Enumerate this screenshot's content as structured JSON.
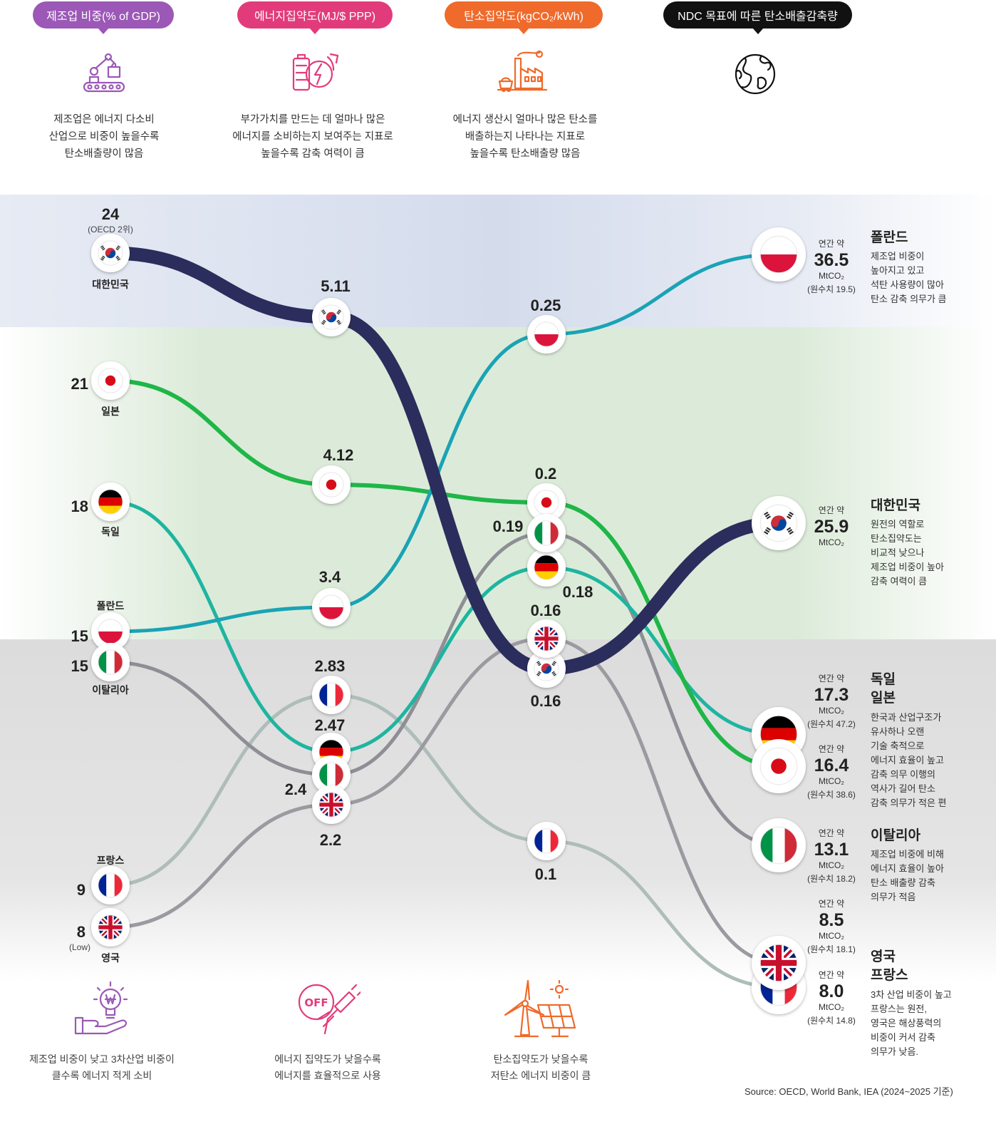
{
  "headers": [
    {
      "label": "제조업 비중(% of GDP)",
      "color": "#9b58b6",
      "icon": "robot-arm-icon",
      "desc": [
        "제조업은 에너지 다소비",
        "산업으로 비중이 높을수록",
        "탄소배출량이 많음"
      ]
    },
    {
      "label": "에너지집약도(MJ/$ PPP)",
      "color": "#e23b7b",
      "icon": "battery-cycle-icon",
      "desc": [
        "부가가치를 만드는 데 얼마나 많은",
        "에너지를 소비하는지 보여주는 지표로",
        "높을수록 감축 여력이 큼"
      ]
    },
    {
      "label": "탄소집약도(kgCO₂/kWh)",
      "color": "#ef6a2b",
      "icon": "factory-icon",
      "desc": [
        "에너지 생산시 얼마나 많은 탄소를",
        "배출하는지 나타나는 지표로",
        "높을수록 탄소배출량 많음"
      ]
    },
    {
      "label": "NDC 목표에 따른 탄소배출감축량",
      "color": "#111111",
      "icon": "globe-icon",
      "desc": []
    }
  ],
  "footers": [
    {
      "icon": "hand-lightbulb-icon",
      "text": [
        "제조업 비중이 낮고 3차산업 비중이",
        "클수록 에너지 적게 소비"
      ]
    },
    {
      "icon": "power-off-plug-icon",
      "text": [
        "에너지 집약도가 낮을수록",
        "에너지를 효율적으로 사용"
      ]
    },
    {
      "icon": "wind-solar-icon",
      "text": [
        "탄소집약도가 낮을수록",
        "저탄소 에너지 비중이 큼"
      ]
    }
  ],
  "chart_data": {
    "type": "bump",
    "stages": [
      "제조업 비중(% of GDP)",
      "에너지집약도(MJ/$ PPP)",
      "탄소집약도(kgCO₂/kWh)",
      "NDC 목표에 따른 탄소배출감축량 (MtCO₂)"
    ],
    "series": [
      {
        "name": "대한민국",
        "flag": "kr",
        "color": "#2b2d5c",
        "values": [
          24,
          5.11,
          0.16,
          25.9
        ],
        "labels": [
          "24",
          "5.11",
          "0.16",
          "25.9"
        ],
        "note": "(OECD 2위)"
      },
      {
        "name": "일본",
        "flag": "jp",
        "color": "#1fb648",
        "values": [
          21,
          4.12,
          0.2,
          16.4
        ],
        "labels": [
          "21",
          "4.12",
          "0.2",
          "16.4"
        ],
        "raw": "(원수치 38.6)"
      },
      {
        "name": "독일",
        "flag": "de",
        "color": "#1eb5a0",
        "values": [
          18,
          2.47,
          0.18,
          17.3
        ],
        "labels": [
          "18",
          "2.47",
          "0.18",
          "17.3"
        ],
        "raw": "(원수치 47.2)"
      },
      {
        "name": "폴란드",
        "flag": "pl",
        "color": "#1aa3b5",
        "values": [
          15,
          3.4,
          0.25,
          36.5
        ],
        "labels": [
          "15",
          "3.4",
          "0.25",
          "36.5"
        ],
        "raw": "(원수치 19.5)"
      },
      {
        "name": "이탈리아",
        "flag": "it",
        "color": "#8e8e96",
        "values": [
          15,
          2.4,
          0.19,
          13.1
        ],
        "labels": [
          "15",
          "2.4",
          "0.19",
          "13.1"
        ],
        "raw": "(원수치 18.2)"
      },
      {
        "name": "프랑스",
        "flag": "fr",
        "color": "#aebdba",
        "values": [
          9,
          2.83,
          0.1,
          8.0
        ],
        "labels": [
          "9",
          "2.83",
          "0.1",
          "8.0"
        ],
        "raw": "(원수치 14.8)"
      },
      {
        "name": "영국",
        "flag": "uk",
        "color": "#9a9aa0",
        "values": [
          8,
          2.2,
          0.16,
          8.5
        ],
        "labels": [
          "8",
          "2.2",
          "0.16",
          "8.5"
        ],
        "note": "(Low)",
        "raw": "(원수치 18.1)"
      }
    ]
  },
  "ndc": {
    "annual_prefix": "연간 약",
    "unit": "MtCO₂",
    "groups": [
      {
        "titles": [
          "폴란드"
        ],
        "desc": [
          "제조업 비중이",
          "높아지고 있고",
          "석탄 사용량이 많아",
          "탄소 감축 의무가 큼"
        ]
      },
      {
        "titles": [
          "대한민국"
        ],
        "desc": [
          "원전의 역할로",
          "탄소집약도는",
          "비교적 낮으나",
          "제조업 비중이 높아",
          "감축 여력이 큼"
        ]
      },
      {
        "titles": [
          "독일",
          "일본"
        ],
        "desc": [
          "한국과 산업구조가",
          "유사하나 오랜",
          "기술 축적으로",
          "에너지 효율이 높고",
          "감축 의무 이행의",
          "역사가 길어 탄소",
          "감축 의무가 적은 편"
        ]
      },
      {
        "titles": [
          "이탈리아"
        ],
        "desc": [
          "제조업 비중에 비해",
          "에너지 효율이 높아",
          "탄소 배출량 감축",
          "의무가 적음"
        ]
      },
      {
        "titles": [
          "영국",
          "프랑스"
        ],
        "desc": [
          "3차 산업 비중이 높고",
          "프랑스는 원전,",
          "영국은 해상풍력의",
          "비중이 커서 감축",
          "의무가 낮음."
        ]
      }
    ]
  },
  "source": "Source: OECD, World Bank, IEA (2024~2025 기준)"
}
